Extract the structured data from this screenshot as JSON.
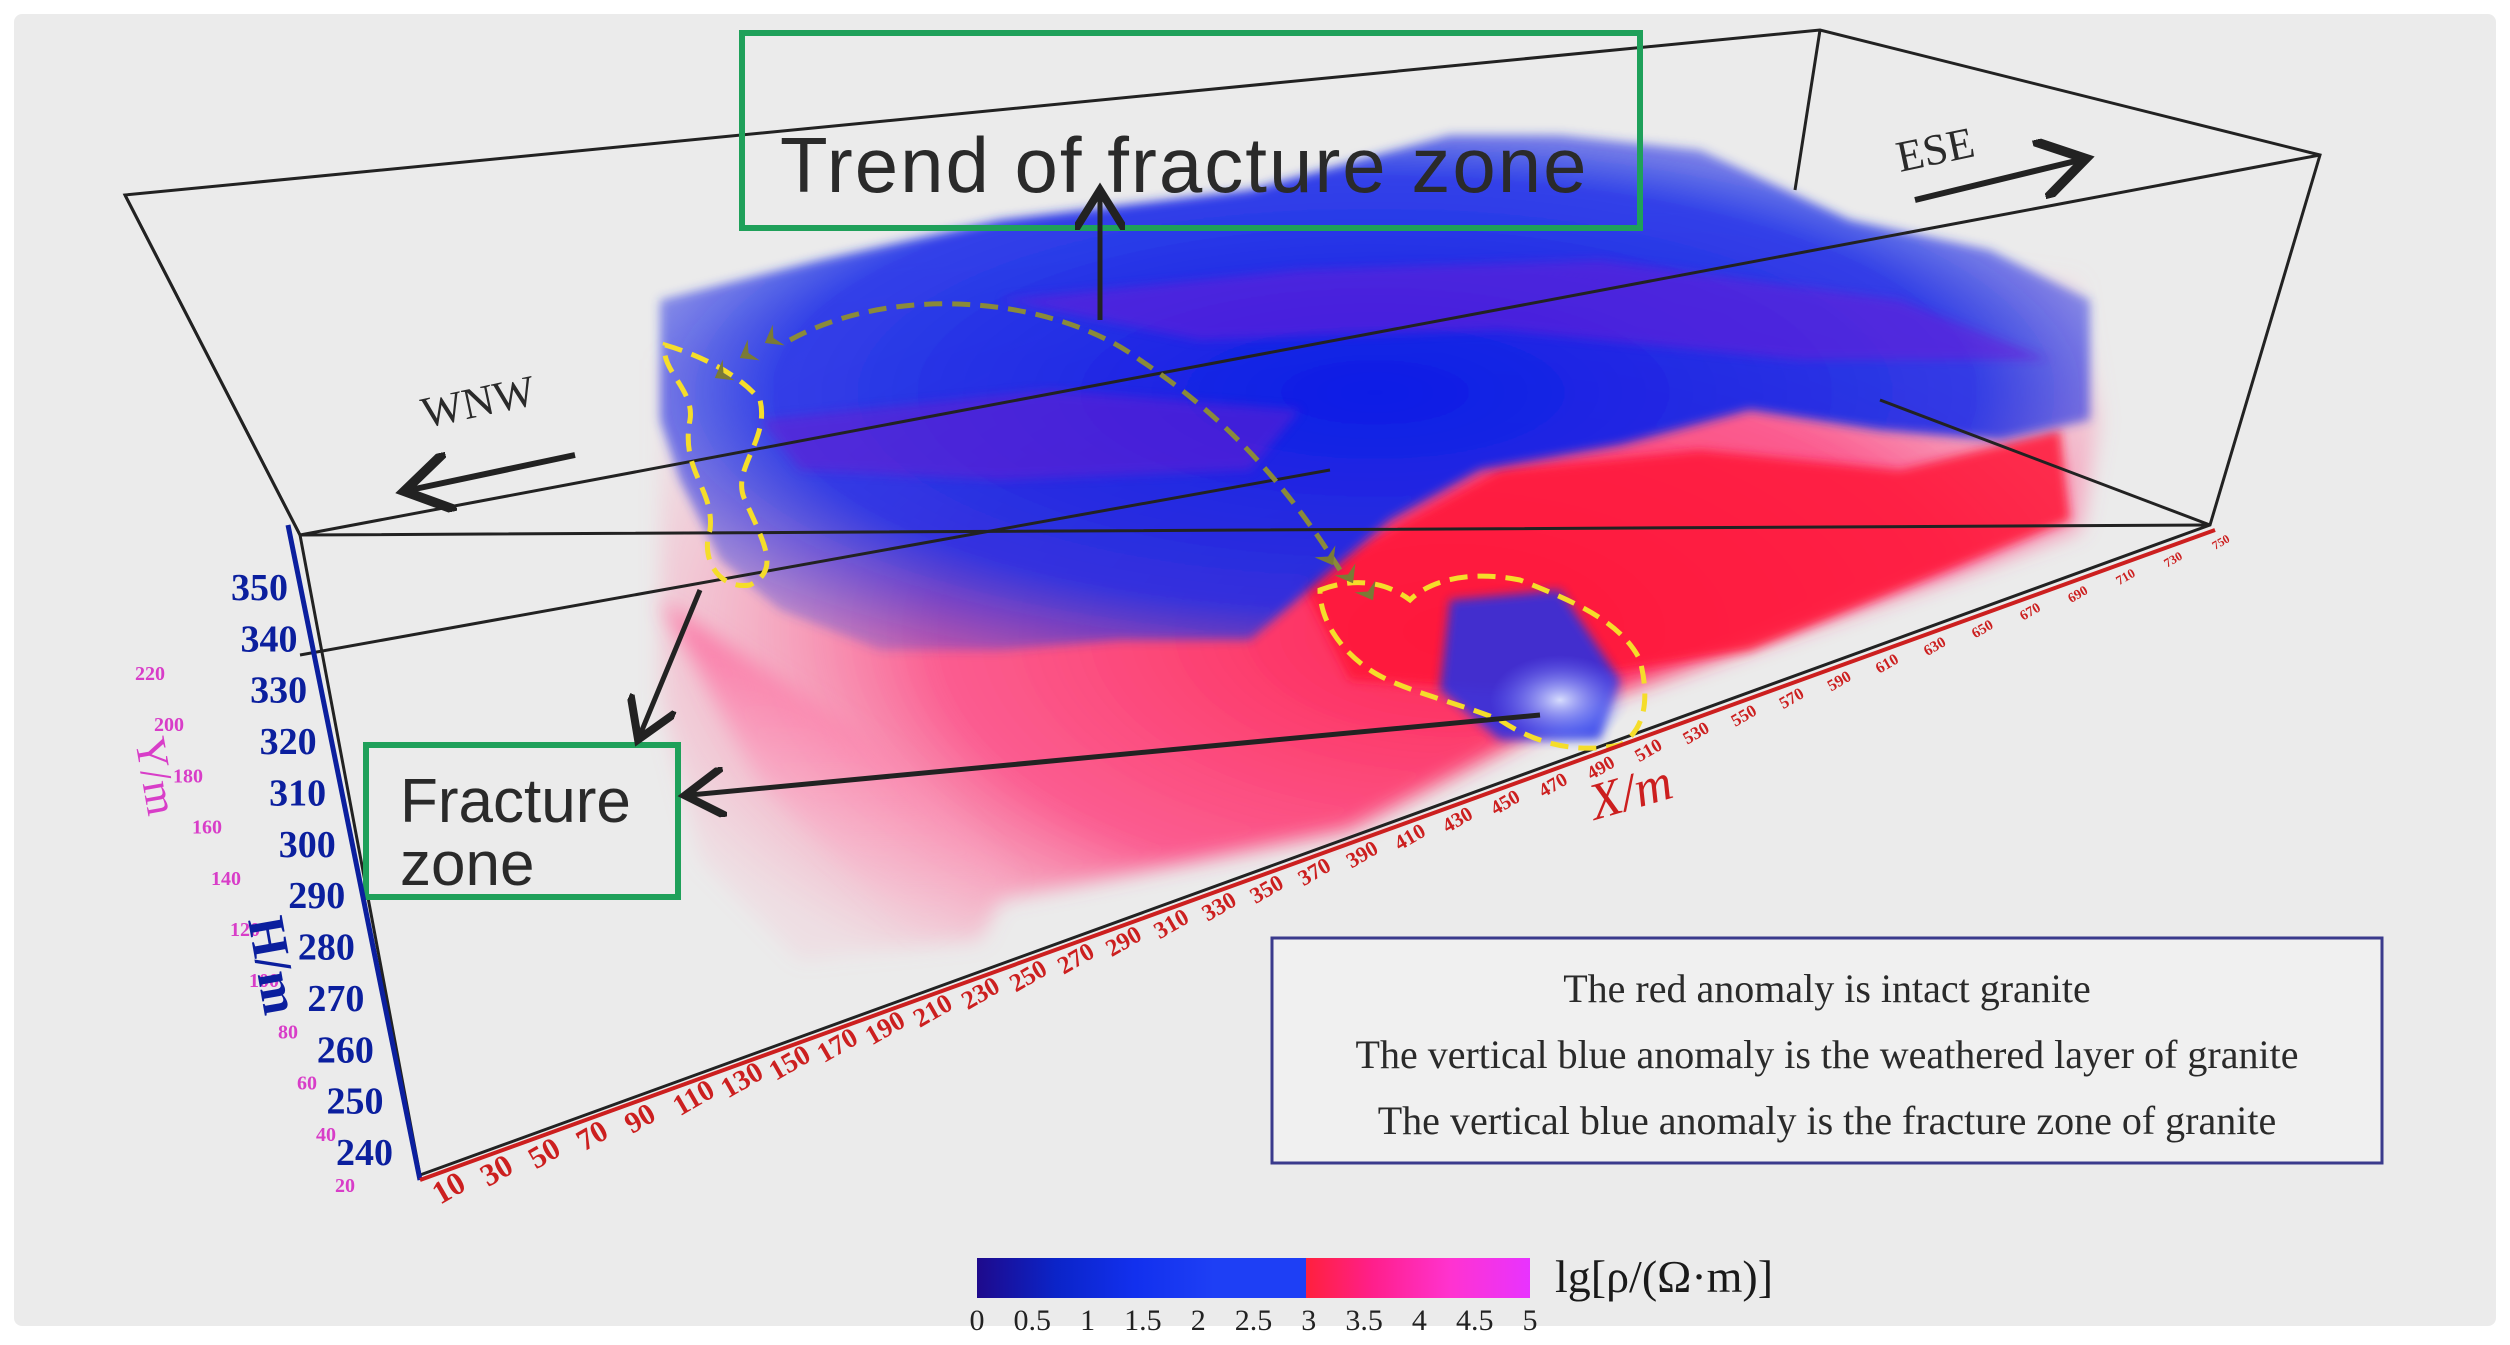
{
  "title": "Trend of fracture zone",
  "directions": {
    "left": "WNW",
    "right": "ESE"
  },
  "fracture_label": [
    "Fracture",
    "zone"
  ],
  "legend": {
    "lines": [
      "The red anomaly is intact granite",
      "The vertical blue anomaly is the weathered layer of granite",
      "The vertical blue anomaly is the fracture zone of granite"
    ]
  },
  "colorbar": {
    "label": "lg[ρ/(Ω·m)]",
    "ticks": [
      "0",
      "0.5",
      "1",
      "1.5",
      "2",
      "2.5",
      "3",
      "3.5",
      "4",
      "4.5",
      "5"
    ],
    "colors": [
      "#1e0a8c",
      "#0b24c8",
      "#1230ee",
      "#1e3ff5",
      "#ff2040",
      "#ff1f8a",
      "#ff33d0",
      "#e833ff"
    ]
  },
  "axes": {
    "x": {
      "label": "X/m",
      "ticks": [
        "10",
        "30",
        "50",
        "70",
        "90",
        "110",
        "130",
        "150",
        "170",
        "190",
        "210",
        "230",
        "250",
        "270",
        "290",
        "310",
        "330",
        "350",
        "370",
        "390",
        "410",
        "430",
        "450",
        "470",
        "490",
        "510",
        "530",
        "550",
        "570",
        "590",
        "610",
        "630",
        "650",
        "670",
        "690",
        "710",
        "730",
        "750"
      ]
    },
    "h": {
      "label": "H/m",
      "ticks": [
        "240",
        "250",
        "260",
        "270",
        "280",
        "290",
        "300",
        "310",
        "320",
        "330",
        "340",
        "350"
      ]
    },
    "y": {
      "label": "Y/m",
      "ticks": [
        "20",
        "40",
        "60",
        "80",
        "100",
        "120",
        "140",
        "160",
        "180",
        "200",
        "220"
      ]
    }
  },
  "colors": {
    "frame": "#222222",
    "green_box": "#1fa05a",
    "dashed": "#f5dd2a",
    "chevron": "#8a8a3a",
    "x_axis": "#cc1f1f",
    "h_axis": "#0b1f9e",
    "y_axis": "#d83dc8"
  }
}
